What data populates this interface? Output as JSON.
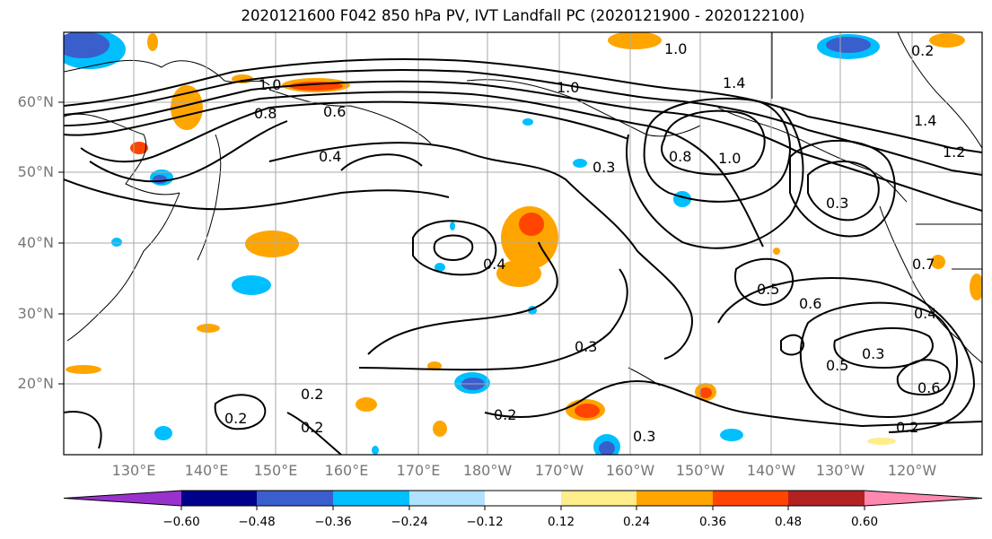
{
  "title": "2020121600 F042 850 hPa PV, IVT Landfall PC (2020121900 - 2020122100)",
  "map": {
    "latitude_labels": [
      "60°N",
      "50°N",
      "40°N",
      "30°N",
      "20°N"
    ],
    "longitude_labels": [
      "130°E",
      "140°E",
      "150°E",
      "160°E",
      "170°E",
      "180°W",
      "170°W",
      "160°W",
      "150°W",
      "140°W",
      "130°W",
      "120°W"
    ],
    "contour_labels": [
      "1.0",
      "1.0",
      "1.4",
      "1.0",
      "0.8",
      "0.6",
      "0.4",
      "0.3",
      "0.8",
      "1.0",
      "0.3",
      "0.4",
      "0.5",
      "0.6",
      "0.3",
      "0.5",
      "0.3",
      "0.4",
      "0.6",
      "0.2",
      "0.2",
      "0.2",
      "0.2",
      "0.3",
      "0.2",
      "0.7",
      "1.4",
      "1.2",
      "0.2"
    ]
  },
  "colorbar": {
    "tick_labels": [
      "−0.60",
      "−0.48",
      "−0.36",
      "−0.24",
      "−0.12",
      "0.12",
      "0.24",
      "0.36",
      "0.48",
      "0.60"
    ],
    "colors": [
      "#9932cc",
      "#00008b",
      "#3a5fcd",
      "#00bfff",
      "#b0e2ff",
      "#ffffff",
      "#ffec8b",
      "#ffa500",
      "#ff4500",
      "#b22222",
      "#ff88b0"
    ]
  }
}
